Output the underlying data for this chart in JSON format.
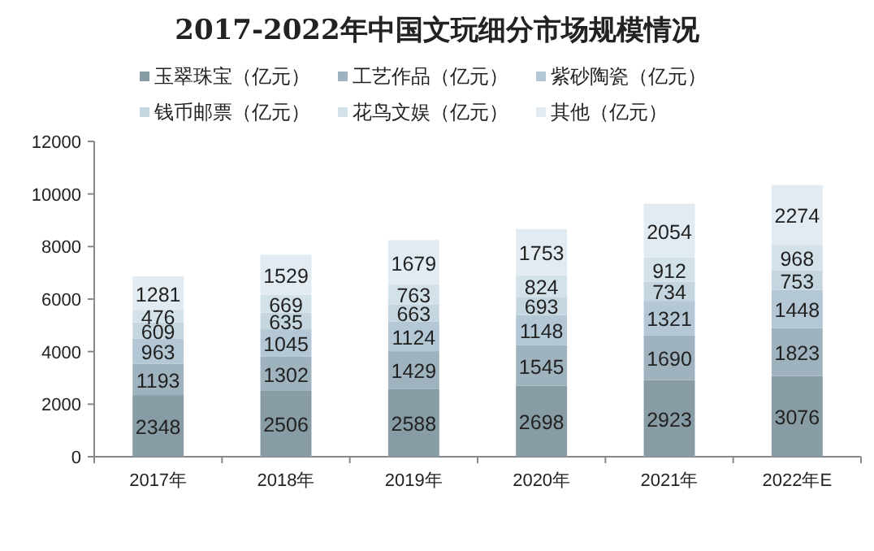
{
  "chart_data": {
    "type": "bar",
    "title": "2017-2022年中国文玩细分市场规模情况",
    "categories": [
      "2017年",
      "2018年",
      "2019年",
      "2020年",
      "2021年",
      "2022年E"
    ],
    "stacked": true,
    "data_labels": true,
    "legend": "top",
    "ylim": [
      0,
      12000
    ],
    "yticks": [
      0,
      2000,
      4000,
      6000,
      8000,
      10000,
      12000
    ],
    "series": [
      {
        "name": "玉翠珠宝（亿元）",
        "color": "#889ca6",
        "values": [
          2348,
          2506,
          2588,
          2698,
          2923,
          3076
        ]
      },
      {
        "name": "工艺作品（亿元）",
        "color": "#9fb3bf",
        "values": [
          1193,
          1302,
          1429,
          1545,
          1690,
          1823
        ]
      },
      {
        "name": "紫砂陶瓷（亿元）",
        "color": "#b3c8d4",
        "values": [
          963,
          1045,
          1124,
          1148,
          1321,
          1448
        ]
      },
      {
        "name": "钱币邮票（亿元）",
        "color": "#c5d6e0",
        "values": [
          609,
          635,
          663,
          693,
          734,
          753
        ]
      },
      {
        "name": "花鸟文娱（亿元）",
        "color": "#d3e1e9",
        "values": [
          476,
          669,
          763,
          824,
          912,
          968
        ]
      },
      {
        "name": "其他（亿元）",
        "color": "#e2ebf1",
        "values": [
          1281,
          1529,
          1679,
          1753,
          2054,
          2274
        ]
      }
    ]
  }
}
